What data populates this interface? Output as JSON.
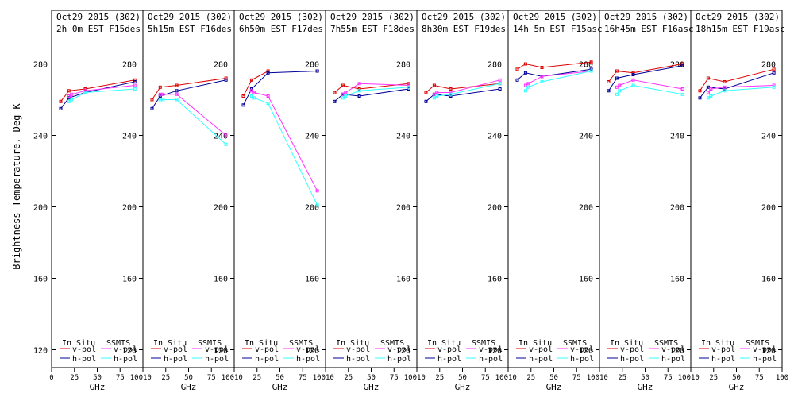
{
  "chart_data": {
    "type": "line",
    "ylabel": "Brightness Temperature, Deg K",
    "xlabel": "GHz",
    "ylim": [
      110,
      290
    ],
    "xlim": [
      0,
      100
    ],
    "x_ticks": [
      0,
      25,
      50,
      75,
      100
    ],
    "x_tick_labels_first": [
      "0",
      "25",
      "50",
      "75",
      "100"
    ],
    "x_tick_labels_rest": [
      "10",
      "25",
      "50",
      "75",
      "100"
    ],
    "y_ticks": [
      120,
      160,
      200,
      240,
      280
    ],
    "legend": {
      "in_situ": "In Situ",
      "ssmis": "SSMIS",
      "vpol": "v-pol",
      "hpol": "h-pol"
    },
    "colors": {
      "insitu_v": "#dd0000",
      "insitu_h": "#000099",
      "ssmis_v": "#ff33ff",
      "ssmis_h": "#33ffff"
    },
    "panels": [
      {
        "title1": "Oct29 2015 (302)",
        "title2": "2h 0m  EST F15des",
        "series": {
          "insitu_v": {
            "x": [
              10,
              19,
              37,
              91
            ],
            "y": [
              259,
              265,
              266,
              271
            ]
          },
          "insitu_h": {
            "x": [
              10,
              19,
              37,
              91
            ],
            "y": [
              255,
              261,
              264,
              270
            ]
          },
          "ssmis_v": {
            "x": [
              19,
              22,
              37,
              91
            ],
            "y": [
              262,
              263,
              265,
              268
            ]
          },
          "ssmis_h": {
            "x": [
              19,
              22,
              37,
              91
            ],
            "y": [
              259,
              260,
              264,
              266
            ]
          }
        }
      },
      {
        "title1": "Oct29 2015 (302)",
        "title2": "5h15m  EST F16des",
        "series": {
          "insitu_v": {
            "x": [
              10,
              19,
              37,
              91
            ],
            "y": [
              260,
              267,
              268,
              272
            ]
          },
          "insitu_h": {
            "x": [
              10,
              19,
              37,
              91
            ],
            "y": [
              255,
              262,
              265,
              271
            ]
          },
          "ssmis_v": {
            "x": [
              19,
              22,
              37,
              91
            ],
            "y": [
              263,
              263,
              263,
              240
            ]
          },
          "ssmis_h": {
            "x": [
              19,
              22,
              37,
              91
            ],
            "y": [
              260,
              260,
              260,
              235
            ]
          }
        }
      },
      {
        "title1": "Oct29 2015 (302)",
        "title2": "6h50m  EST F17des",
        "series": {
          "insitu_v": {
            "x": [
              10,
              19,
              37,
              91
            ],
            "y": [
              262,
              271,
              276,
              276
            ]
          },
          "insitu_h": {
            "x": [
              10,
              19,
              37,
              91
            ],
            "y": [
              257,
              266,
              275,
              276
            ]
          },
          "ssmis_v": {
            "x": [
              19,
              22,
              37,
              91
            ],
            "y": [
              265,
              264,
              262,
              209
            ]
          },
          "ssmis_h": {
            "x": [
              19,
              22,
              37,
              91
            ],
            "y": [
              262,
              261,
              258,
              201
            ]
          }
        }
      },
      {
        "title1": "Oct29 2015 (302)",
        "title2": "7h55m  EST F18des",
        "series": {
          "insitu_v": {
            "x": [
              10,
              19,
              37,
              91
            ],
            "y": [
              264,
              268,
              266,
              269
            ]
          },
          "insitu_h": {
            "x": [
              10,
              19,
              37,
              91
            ],
            "y": [
              259,
              263,
              262,
              266
            ]
          },
          "ssmis_v": {
            "x": [
              19,
              22,
              37,
              91
            ],
            "y": [
              263,
              264,
              269,
              268
            ]
          },
          "ssmis_h": {
            "x": [
              19,
              22,
              37,
              91
            ],
            "y": [
              261,
              262,
              265,
              267
            ]
          }
        }
      },
      {
        "title1": "Oct29 2015 (302)",
        "title2": "8h30m  EST F19des",
        "series": {
          "insitu_v": {
            "x": [
              10,
              19,
              37,
              91
            ],
            "y": [
              264,
              268,
              266,
              269
            ]
          },
          "insitu_h": {
            "x": [
              10,
              19,
              37,
              91
            ],
            "y": [
              259,
              263,
              262,
              266
            ]
          },
          "ssmis_v": {
            "x": [
              19,
              22,
              37,
              91
            ],
            "y": [
              263,
              264,
              264,
              271
            ]
          },
          "ssmis_h": {
            "x": [
              19,
              22,
              37,
              91
            ],
            "y": [
              261,
              262,
              263,
              269
            ]
          }
        }
      },
      {
        "title1": "Oct29 2015 (302)",
        "title2": "14h 5m  EST F15asc",
        "series": {
          "insitu_v": {
            "x": [
              10,
              19,
              37,
              91
            ],
            "y": [
              277,
              280,
              278,
              281
            ]
          },
          "insitu_h": {
            "x": [
              10,
              19,
              37,
              91
            ],
            "y": [
              271,
              275,
              273,
              277
            ]
          },
          "ssmis_v": {
            "x": [
              19,
              22,
              37,
              91
            ],
            "y": [
              268,
              269,
              273,
              276
            ]
          },
          "ssmis_h": {
            "x": [
              19,
              22,
              37,
              91
            ],
            "y": [
              265,
              267,
              270,
              276
            ]
          }
        }
      },
      {
        "title1": "Oct29 2015 (302)",
        "title2": "16h45m  EST F16asc",
        "series": {
          "insitu_v": {
            "x": [
              10,
              19,
              37,
              91
            ],
            "y": [
              270,
              276,
              275,
              280
            ]
          },
          "insitu_h": {
            "x": [
              10,
              19,
              37,
              91
            ],
            "y": [
              265,
              272,
              274,
              279
            ]
          },
          "ssmis_v": {
            "x": [
              19,
              22,
              37,
              91
            ],
            "y": [
              267,
              268,
              271,
              266
            ]
          },
          "ssmis_h": {
            "x": [
              19,
              22,
              37,
              91
            ],
            "y": [
              263,
              265,
              268,
              263
            ]
          }
        }
      },
      {
        "title1": "Oct29 2015 (302)",
        "title2": "18h15m  EST F19asc",
        "series": {
          "insitu_v": {
            "x": [
              10,
              19,
              37,
              91
            ],
            "y": [
              265,
              272,
              270,
              277
            ]
          },
          "insitu_h": {
            "x": [
              10,
              19,
              37,
              91
            ],
            "y": [
              261,
              267,
              266,
              275
            ]
          },
          "ssmis_v": {
            "x": [
              19,
              22,
              37,
              91
            ],
            "y": [
              264,
              266,
              267,
              268
            ]
          },
          "ssmis_h": {
            "x": [
              19,
              22,
              37,
              91
            ],
            "y": [
              261,
              262,
              265,
              267
            ]
          }
        }
      }
    ]
  }
}
